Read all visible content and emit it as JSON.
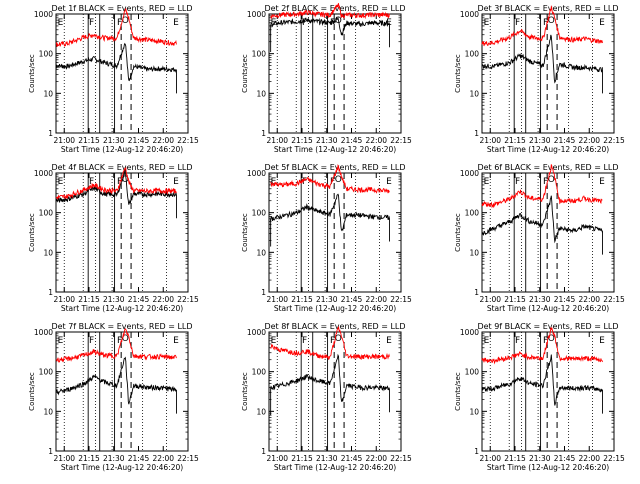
{
  "figure": {
    "xticks": [
      "21:00",
      "21:15",
      "21:30",
      "21:45",
      "22:00",
      "22:15"
    ],
    "ytick_labels": [
      "1",
      "10",
      "100",
      "1000"
    ],
    "ylabel": "Counts/sec",
    "xlabel": "Start Time (12-Aug-12 20:46:20)",
    "colors": {
      "events": "#000000",
      "lld": "#ff0000",
      "background": "#ffffff"
    }
  },
  "chart_data": [
    {
      "type": "line",
      "title": "Det 1f  BLACK = Events, RED = LLD",
      "region_labels": [
        "E",
        "F",
        "F",
        "E"
      ],
      "flare_marker": "O",
      "x_range_min": [
        8,
        88
      ],
      "y_scale": "log",
      "ylim": [
        1,
        1000
      ],
      "series": [
        {
          "name": "Events",
          "values": [
            [
              8,
              50
            ],
            [
              15,
              48
            ],
            [
              25,
              65
            ],
            [
              31,
              75
            ],
            [
              37,
              60
            ],
            [
              45,
              50
            ],
            [
              50,
              200
            ],
            [
              52,
              20
            ],
            [
              55,
              48
            ],
            [
              64,
              40
            ],
            [
              70,
              42
            ],
            [
              81,
              40
            ]
          ]
        },
        {
          "name": "LLD",
          "values": [
            [
              8,
              170
            ],
            [
              15,
              180
            ],
            [
              25,
              260
            ],
            [
              31,
              300
            ],
            [
              37,
              250
            ],
            [
              45,
              250
            ],
            [
              50,
              1300
            ],
            [
              52,
              800
            ],
            [
              55,
              250
            ],
            [
              64,
              220
            ],
            [
              70,
              210
            ],
            [
              81,
              180
            ]
          ]
        }
      ]
    },
    {
      "type": "line",
      "title": "Det 2f  BLACK = Events, RED = LLD",
      "region_labels": [
        "E",
        "F",
        "F",
        "E"
      ],
      "flare_marker": "O",
      "x_range_min": [
        8,
        88
      ],
      "y_scale": "log",
      "ylim": [
        1,
        1000
      ],
      "series": [
        {
          "name": "Events",
          "values": [
            [
              9,
              550
            ],
            [
              15,
              600
            ],
            [
              25,
              650
            ],
            [
              31,
              700
            ],
            [
              37,
              650
            ],
            [
              45,
              600
            ],
            [
              50,
              750
            ],
            [
              52,
              300
            ],
            [
              55,
              600
            ],
            [
              64,
              550
            ],
            [
              70,
              600
            ],
            [
              81,
              580
            ]
          ]
        },
        {
          "name": "LLD",
          "values": [
            [
              9,
              900
            ],
            [
              15,
              950
            ],
            [
              25,
              1000
            ],
            [
              31,
              1100
            ],
            [
              37,
              1000
            ],
            [
              45,
              950
            ],
            [
              50,
              1700
            ],
            [
              52,
              900
            ],
            [
              55,
              950
            ],
            [
              64,
              930
            ],
            [
              70,
              960
            ],
            [
              81,
              950
            ]
          ]
        }
      ]
    },
    {
      "type": "line",
      "title": "Det 3f  BLACK = Events, RED = LLD",
      "region_labels": [
        "E",
        "F",
        "F",
        "E"
      ],
      "flare_marker": "O",
      "x_range_min": [
        8,
        88
      ],
      "y_scale": "log",
      "ylim": [
        1,
        1000
      ],
      "series": [
        {
          "name": "Events",
          "values": [
            [
              8,
              50
            ],
            [
              15,
              48
            ],
            [
              25,
              60
            ],
            [
              31,
              90
            ],
            [
              37,
              65
            ],
            [
              45,
              50
            ],
            [
              50,
              300
            ],
            [
              52,
              20
            ],
            [
              55,
              55
            ],
            [
              64,
              45
            ],
            [
              70,
              45
            ],
            [
              81,
              40
            ]
          ]
        },
        {
          "name": "LLD",
          "values": [
            [
              8,
              180
            ],
            [
              15,
              190
            ],
            [
              25,
              260
            ],
            [
              31,
              380
            ],
            [
              37,
              260
            ],
            [
              45,
              240
            ],
            [
              50,
              1500
            ],
            [
              52,
              800
            ],
            [
              55,
              260
            ],
            [
              64,
              220
            ],
            [
              70,
              240
            ],
            [
              81,
              200
            ]
          ]
        }
      ]
    },
    {
      "type": "line",
      "title": "Det 4f  BLACK = Events, RED = LLD",
      "region_labels": [
        "E",
        "F",
        "F",
        "E"
      ],
      "flare_marker": "O",
      "x_range_min": [
        8,
        88
      ],
      "y_scale": "log",
      "ylim": [
        1,
        1000
      ],
      "series": [
        {
          "name": "Events",
          "values": [
            [
              8,
              200
            ],
            [
              15,
              220
            ],
            [
              25,
              300
            ],
            [
              31,
              420
            ],
            [
              37,
              300
            ],
            [
              45,
              280
            ],
            [
              50,
              1200
            ],
            [
              52,
              150
            ],
            [
              55,
              300
            ],
            [
              64,
              290
            ],
            [
              70,
              300
            ],
            [
              81,
              290
            ]
          ]
        },
        {
          "name": "LLD",
          "values": [
            [
              8,
              240
            ],
            [
              15,
              260
            ],
            [
              25,
              380
            ],
            [
              31,
              500
            ],
            [
              37,
              380
            ],
            [
              45,
              350
            ],
            [
              50,
              1400
            ],
            [
              52,
              600
            ],
            [
              55,
              360
            ],
            [
              64,
              350
            ],
            [
              70,
              360
            ],
            [
              81,
              350
            ]
          ]
        }
      ]
    },
    {
      "type": "line",
      "title": "Det 5f  BLACK = Events, RED = LLD",
      "region_labels": [
        "E",
        "F",
        "F",
        "E"
      ],
      "flare_marker": "O",
      "x_range_min": [
        8,
        88
      ],
      "y_scale": "log",
      "ylim": [
        1,
        1000
      ],
      "series": [
        {
          "name": "Events",
          "values": [
            [
              9,
              70
            ],
            [
              15,
              80
            ],
            [
              25,
              100
            ],
            [
              31,
              140
            ],
            [
              37,
              110
            ],
            [
              45,
              90
            ],
            [
              50,
              300
            ],
            [
              52,
              30
            ],
            [
              55,
              90
            ],
            [
              64,
              85
            ],
            [
              70,
              80
            ],
            [
              81,
              75
            ]
          ]
        },
        {
          "name": "LLD",
          "values": [
            [
              9,
              550
            ],
            [
              15,
              500
            ],
            [
              25,
              550
            ],
            [
              31,
              700
            ],
            [
              37,
              550
            ],
            [
              45,
              450
            ],
            [
              50,
              1500
            ],
            [
              52,
              800
            ],
            [
              55,
              400
            ],
            [
              64,
              380
            ],
            [
              70,
              380
            ],
            [
              81,
              350
            ]
          ]
        }
      ]
    },
    {
      "type": "line",
      "title": "Det 6f  BLACK = Events, RED = LLD",
      "region_labels": [
        "E",
        "F",
        "F",
        "E"
      ],
      "flare_marker": "O",
      "x_range_min": [
        8,
        88
      ],
      "y_scale": "log",
      "ylim": [
        1,
        1000
      ],
      "series": [
        {
          "name": "Events",
          "values": [
            [
              8,
              30
            ],
            [
              15,
              40
            ],
            [
              25,
              60
            ],
            [
              31,
              90
            ],
            [
              37,
              60
            ],
            [
              45,
              50
            ],
            [
              50,
              250
            ],
            [
              52,
              20
            ],
            [
              55,
              40
            ],
            [
              64,
              35
            ],
            [
              70,
              45
            ],
            [
              81,
              35
            ]
          ]
        },
        {
          "name": "LLD",
          "values": [
            [
              8,
              170
            ],
            [
              15,
              160
            ],
            [
              25,
              220
            ],
            [
              31,
              350
            ],
            [
              37,
              230
            ],
            [
              45,
              220
            ],
            [
              50,
              1500
            ],
            [
              52,
              800
            ],
            [
              55,
              200
            ],
            [
              64,
              200
            ],
            [
              70,
              230
            ],
            [
              81,
              190
            ]
          ]
        }
      ]
    },
    {
      "type": "line",
      "title": "Det 7f  BLACK = Events, RED = LLD",
      "region_labels": [
        "E",
        "F",
        "F",
        "E"
      ],
      "flare_marker": "O",
      "x_range_min": [
        8,
        88
      ],
      "y_scale": "log",
      "ylim": [
        1,
        1000
      ],
      "series": [
        {
          "name": "Events",
          "values": [
            [
              8,
              30
            ],
            [
              15,
              35
            ],
            [
              25,
              50
            ],
            [
              31,
              75
            ],
            [
              37,
              55
            ],
            [
              45,
              45
            ],
            [
              50,
              250
            ],
            [
              52,
              15
            ],
            [
              55,
              45
            ],
            [
              64,
              40
            ],
            [
              70,
              40
            ],
            [
              81,
              35
            ]
          ]
        },
        {
          "name": "LLD",
          "values": [
            [
              8,
              200
            ],
            [
              15,
              210
            ],
            [
              25,
              260
            ],
            [
              31,
              320
            ],
            [
              37,
              260
            ],
            [
              45,
              250
            ],
            [
              50,
              1200
            ],
            [
              52,
              800
            ],
            [
              55,
              250
            ],
            [
              64,
              240
            ],
            [
              70,
              240
            ],
            [
              81,
              230
            ]
          ]
        }
      ]
    },
    {
      "type": "line",
      "title": "Det 8f  BLACK = Events, RED = LLD",
      "region_labels": [
        "E",
        "F",
        "F",
        "E"
      ],
      "flare_marker": "O",
      "x_range_min": [
        8,
        88
      ],
      "y_scale": "log",
      "ylim": [
        1,
        1000
      ],
      "series": [
        {
          "name": "Events",
          "values": [
            [
              9,
              40
            ],
            [
              15,
              45
            ],
            [
              25,
              60
            ],
            [
              31,
              75
            ],
            [
              37,
              60
            ],
            [
              45,
              50
            ],
            [
              50,
              250
            ],
            [
              52,
              15
            ],
            [
              55,
              45
            ],
            [
              64,
              40
            ],
            [
              70,
              40
            ],
            [
              81,
              38
            ]
          ]
        },
        {
          "name": "LLD",
          "values": [
            [
              9,
              450
            ],
            [
              15,
              350
            ],
            [
              25,
              300
            ],
            [
              31,
              330
            ],
            [
              37,
              260
            ],
            [
              45,
              230
            ],
            [
              50,
              1300
            ],
            [
              52,
              800
            ],
            [
              55,
              250
            ],
            [
              64,
              240
            ],
            [
              70,
              240
            ],
            [
              81,
              240
            ]
          ]
        }
      ]
    },
    {
      "type": "line",
      "title": "Det 9f  BLACK = Events, RED = LLD",
      "region_labels": [
        "E",
        "F",
        "F",
        "E"
      ],
      "flare_marker": "O",
      "x_range_min": [
        8,
        88
      ],
      "y_scale": "log",
      "ylim": [
        1,
        1000
      ],
      "series": [
        {
          "name": "Events",
          "values": [
            [
              8,
              35
            ],
            [
              15,
              38
            ],
            [
              25,
              50
            ],
            [
              31,
              70
            ],
            [
              37,
              50
            ],
            [
              45,
              45
            ],
            [
              50,
              250
            ],
            [
              52,
              15
            ],
            [
              55,
              40
            ],
            [
              64,
              38
            ],
            [
              70,
              40
            ],
            [
              81,
              35
            ]
          ]
        },
        {
          "name": "LLD",
          "values": [
            [
              8,
              200
            ],
            [
              15,
              190
            ],
            [
              25,
              230
            ],
            [
              31,
              280
            ],
            [
              37,
              230
            ],
            [
              45,
              220
            ],
            [
              50,
              1300
            ],
            [
              52,
              800
            ],
            [
              55,
              220
            ],
            [
              64,
              210
            ],
            [
              70,
              220
            ],
            [
              81,
              200
            ]
          ]
        }
      ]
    }
  ]
}
